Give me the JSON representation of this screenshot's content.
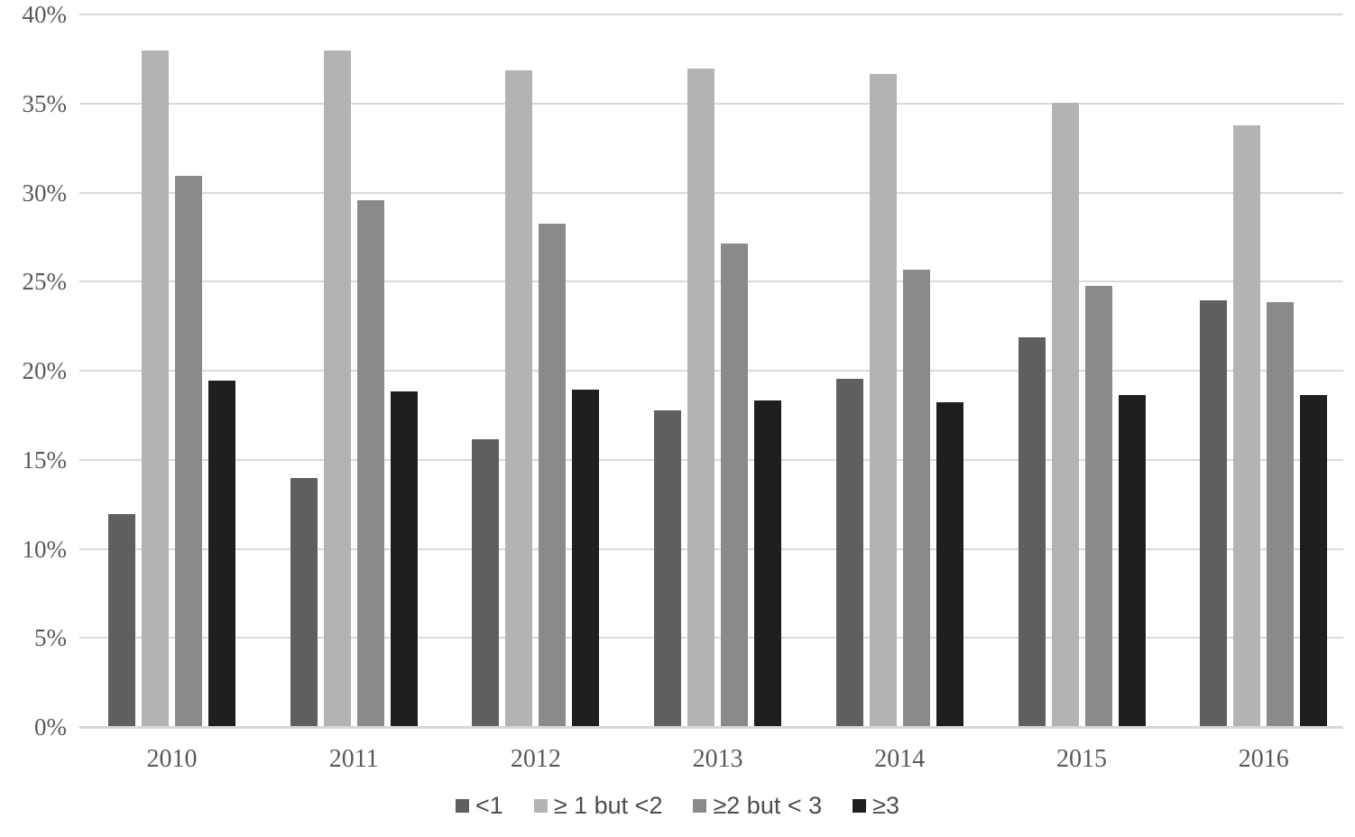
{
  "chart_data": {
    "type": "bar",
    "title": "",
    "xlabel": "",
    "ylabel": "",
    "categories": [
      "2010",
      "2011",
      "2012",
      "2013",
      "2014",
      "2015",
      "2016"
    ],
    "series": [
      {
        "name": "<1",
        "color": "#5f5f5f",
        "values": [
          11.9,
          13.9,
          16.1,
          17.7,
          19.5,
          21.8,
          23.9
        ]
      },
      {
        "name": "≥ 1 but <2",
        "color": "#b3b3b3",
        "values": [
          37.9,
          37.9,
          36.8,
          36.9,
          36.6,
          35.0,
          33.7
        ]
      },
      {
        "name": "≥2 but < 3",
        "color": "#8a8a8a",
        "values": [
          30.9,
          29.5,
          28.2,
          27.1,
          25.6,
          24.7,
          23.8
        ]
      },
      {
        "name": "≥3",
        "color": "#1f1f1f",
        "values": [
          19.4,
          18.8,
          18.9,
          18.3,
          18.2,
          18.6,
          18.6
        ]
      }
    ],
    "ylim": [
      0,
      40
    ],
    "ytick_step": 5,
    "ytick_labels": [
      "0%",
      "5%",
      "10%",
      "15%",
      "20%",
      "25%",
      "30%",
      "35%",
      "40%"
    ],
    "grid": true,
    "legend_position": "bottom",
    "gridline_color": "#dadada",
    "tick_label_color": "#595959"
  }
}
